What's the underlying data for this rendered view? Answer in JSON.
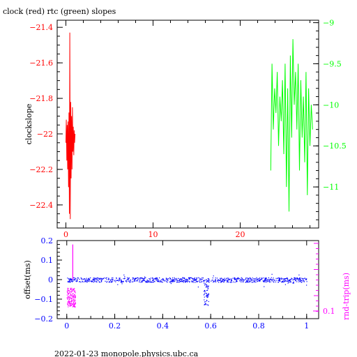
{
  "title": "clock (red) rtc (green) slopes",
  "footer": "2022-01-23 monopole.physics.ubc.ca",
  "colors": {
    "clock": "#ff0000",
    "rtc": "#00ff00",
    "offset": "#0000ff",
    "rndtrip": "#ff00ff",
    "axis": "#000000"
  },
  "chart_data": [
    {
      "type": "line",
      "title": "clock (red) rtc (green) slopes",
      "ylabel": "clockslope",
      "xlim": [
        -1,
        29
      ],
      "ylim": [
        -22.53,
        -21.36
      ],
      "y2lim": [
        -11.5,
        -8.97
      ],
      "grid": false,
      "x_ticks": [
        0,
        10,
        20
      ],
      "y_ticks": [
        -21.4,
        -21.6,
        -21.8,
        -22,
        -22.2,
        -22.4
      ],
      "y2_ticks": [
        -9,
        -9.5,
        -10,
        -10.5,
        -11
      ],
      "y2_tick_labels": [
        "-9",
        "-9.5",
        "-10",
        "-10.5",
        "-11"
      ],
      "series": [
        {
          "name": "clock",
          "axis": "left",
          "x": [
            0.0,
            0.05,
            0.1,
            0.15,
            0.2,
            0.25,
            0.3,
            0.35,
            0.4,
            0.45,
            0.5,
            0.55,
            0.6,
            0.65,
            0.7,
            0.75,
            0.8,
            0.85,
            0.9,
            0.95,
            1.0,
            1.05
          ],
          "y": [
            -22.05,
            -21.92,
            -22.15,
            -21.95,
            -22.2,
            -21.93,
            -22.3,
            -21.88,
            -22.45,
            -21.43,
            -22.48,
            -21.82,
            -22.25,
            -21.9,
            -22.2,
            -21.85,
            -22.1,
            -21.96,
            -22.12,
            -21.98,
            -22.05,
            -22.0
          ]
        },
        {
          "name": "rtc",
          "axis": "right",
          "x": [
            23.5,
            23.65,
            23.8,
            23.95,
            24.1,
            24.25,
            24.4,
            24.55,
            24.7,
            24.85,
            25.0,
            25.15,
            25.3,
            25.45,
            25.6,
            25.75,
            25.9,
            26.05,
            26.2,
            26.35,
            26.5,
            26.65,
            26.8,
            26.95,
            27.1,
            27.25,
            27.4,
            27.55,
            27.7,
            27.85,
            28.0,
            28.15,
            28.3
          ],
          "y": [
            -10.8,
            -9.5,
            -10.3,
            -9.8,
            -10.1,
            -9.6,
            -10.5,
            -9.9,
            -10.2,
            -9.7,
            -10.6,
            -9.5,
            -11.0,
            -9.8,
            -11.3,
            -9.4,
            -10.4,
            -9.2,
            -10.0,
            -9.6,
            -10.3,
            -9.5,
            -10.8,
            -9.7,
            -10.4,
            -9.9,
            -10.7,
            -9.6,
            -11.1,
            -9.8,
            -10.5,
            -10.0,
            -10.3
          ]
        }
      ]
    },
    {
      "type": "scatter",
      "ylabel": "offset(ms)",
      "y2label": "rnd-trip(ms)",
      "xlim": [
        -0.04,
        1.05
      ],
      "ylim": [
        -0.2,
        0.2
      ],
      "y2_scale": "log",
      "grid": false,
      "x_ticks": [
        0,
        0.2,
        0.4,
        0.6,
        0.8,
        1
      ],
      "x_tick_labels": [
        "0",
        "0.2",
        "0.4",
        "0.6",
        "0.8",
        "1"
      ],
      "y_ticks": [
        0.2,
        0.1,
        0,
        -0.1,
        -0.2
      ],
      "y_tick_labels": [
        "0.2",
        "0.1",
        "0",
        "-0.1",
        "-0.2"
      ],
      "y2_ticks": [
        0.1
      ],
      "y2_tick_labels": [
        "0.1"
      ],
      "series": [
        {
          "name": "offset",
          "axis": "left",
          "x_range": [
            0.0,
            1.0
          ],
          "y_center": 0.0,
          "y_spread": 0.012,
          "dip_x": 0.58,
          "dip_y": -0.13
        },
        {
          "name": "rnd-trip",
          "axis": "right",
          "x_range": [
            0.0,
            0.035
          ],
          "y_range_left_units": [
            -0.14,
            -0.04
          ],
          "spike_x": 0.025,
          "spike_top_left_units": 0.18
        }
      ]
    }
  ]
}
